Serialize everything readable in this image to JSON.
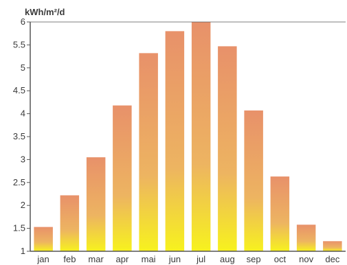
{
  "chart_data": {
    "type": "bar",
    "title": "",
    "unit_label": "kWh/m²/d",
    "xlabel": "",
    "ylabel": "",
    "categories": [
      "jan",
      "feb",
      "mar",
      "apr",
      "mai",
      "jun",
      "jul",
      "aug",
      "sep",
      "oct",
      "nov",
      "dec"
    ],
    "series": [
      {
        "values": [
          1.53,
          2.22,
          3.05,
          4.18,
          5.32,
          5.8,
          6.0,
          5.47,
          4.07,
          2.63,
          1.58,
          1.22
        ]
      }
    ],
    "ylim": [
      1,
      6
    ],
    "yticks": [
      "1",
      "1.5",
      "2",
      "2.5",
      "3",
      "3.5",
      "4",
      "4.5",
      "5",
      "5.5",
      "6"
    ],
    "grid": false,
    "legend": "none",
    "colors": {
      "bar_top": "#e8916a",
      "bar_bottom": "#f7f21e",
      "axis": "#555555"
    }
  }
}
